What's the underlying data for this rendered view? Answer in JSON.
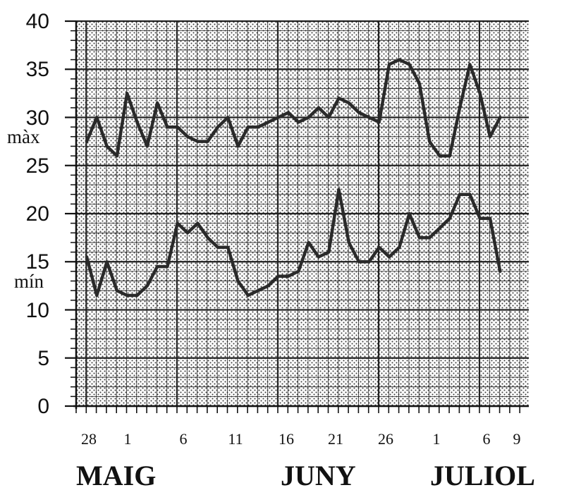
{
  "chart_data": {
    "type": "line",
    "ylim": [
      0,
      40
    ],
    "yticks": [
      "0",
      "5",
      "10",
      "15",
      "20",
      "25",
      "30",
      "35",
      "40"
    ],
    "xticks": [
      "28",
      "1",
      "6",
      "11",
      "16",
      "21",
      "26",
      "1",
      "6",
      "9"
    ],
    "months": [
      "MAIG",
      "JUNY",
      "JULIOL"
    ],
    "grid": true,
    "series": [
      {
        "name": "màx",
        "values": [
          27.5,
          30,
          27,
          26,
          32.5,
          29.5,
          27,
          31.5,
          29,
          29,
          28,
          27.5,
          27.5,
          29,
          30,
          27,
          29,
          29,
          29.5,
          30,
          30.5,
          29.5,
          30,
          31,
          30,
          32,
          31.5,
          30.5,
          30,
          29.5,
          35.5,
          36,
          35.5,
          33.5,
          27.5,
          26,
          26,
          31,
          35.5,
          32.5,
          28,
          30
        ]
      },
      {
        "name": "mín",
        "values": [
          15.5,
          11.5,
          15,
          12,
          11.5,
          11.5,
          12.5,
          14.5,
          14.5,
          19,
          18,
          19,
          17.5,
          16.5,
          16.5,
          13,
          11.5,
          12,
          12.5,
          13.5,
          13.5,
          14,
          17,
          15.5,
          16,
          22.5,
          17,
          15,
          15,
          16.5,
          15.5,
          16.5,
          20,
          17.5,
          17.5,
          18.5,
          19.5,
          22,
          22,
          19.5,
          19.5,
          14
        ]
      }
    ]
  }
}
